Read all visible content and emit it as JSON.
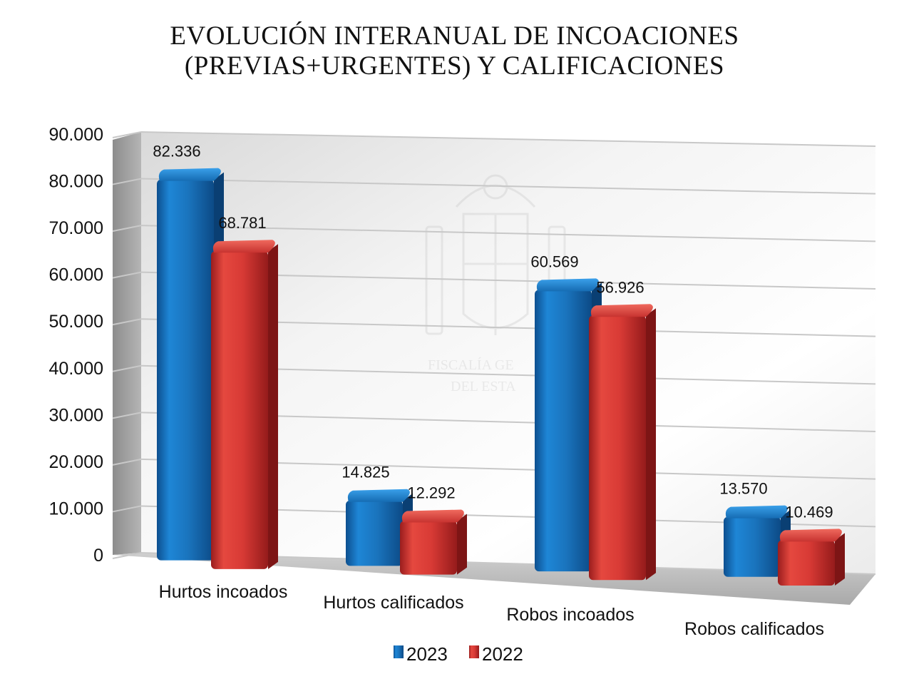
{
  "chart_data": {
    "type": "bar",
    "title": "EVOLUCIÓN INTERANUAL DE INCOACIONES (PREVIAS+URGENTES) Y CALIFICACIONES",
    "title_lines": [
      "EVOLUCIÓN INTERANUAL DE INCOACIONES",
      "(PREVIAS+URGENTES) Y CALIFICACIONES"
    ],
    "categories": [
      "Hurtos incoados",
      "Hurtos calificados",
      "Robos incoados",
      "Robos calificados"
    ],
    "series": [
      {
        "name": "2023",
        "color": "#1f7fc8",
        "values": [
          82336,
          14825,
          60569,
          13570
        ],
        "labels": [
          "82.336",
          "14.825",
          "60.569",
          "13.570"
        ]
      },
      {
        "name": "2022",
        "color": "#e0403a",
        "values": [
          68781,
          12292,
          56926,
          10469
        ],
        "labels": [
          "68.781",
          "12.292",
          "56.926",
          "10.469"
        ]
      }
    ],
    "ylim": [
      0,
      90000
    ],
    "yticks": [
      0,
      10000,
      20000,
      30000,
      40000,
      50000,
      60000,
      70000,
      80000,
      90000
    ],
    "ytick_labels": [
      "0",
      "10.000",
      "20.000",
      "30.000",
      "40.000",
      "50.000",
      "60.000",
      "70.000",
      "80.000",
      "90.000"
    ],
    "grid": true,
    "legend": "bottom",
    "style": "3d-perspective",
    "watermark_text": [
      "FISCALÍA GE",
      "DEL ESTA"
    ]
  }
}
